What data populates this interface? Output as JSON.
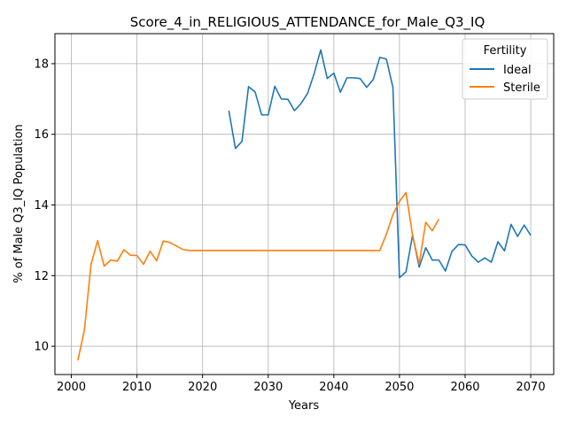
{
  "chart_data": {
    "type": "line",
    "title": "Score_4_in_RELIGIOUS_ATTENDANCE_for_Male_Q3_IQ",
    "xlabel": "Years",
    "ylabel": "% of Male Q3_IQ Population",
    "xlim": [
      1997.5,
      2073.5
    ],
    "ylim": [
      9.2,
      18.85
    ],
    "xticks": [
      2000,
      2010,
      2020,
      2030,
      2040,
      2050,
      2060,
      2070
    ],
    "yticks": [
      10,
      12,
      14,
      16,
      18
    ],
    "grid": true,
    "legend": {
      "title": "Fertility",
      "placement": "top-right"
    },
    "series": [
      {
        "name": "Ideal",
        "color": "#1f77b4",
        "x": [
          2024,
          2025,
          2026,
          2027,
          2028,
          2029,
          2030,
          2031,
          2032,
          2033,
          2034,
          2035,
          2036,
          2037,
          2038,
          2039,
          2040,
          2041,
          2042,
          2043,
          2044,
          2045,
          2046,
          2047,
          2048,
          2049,
          2050,
          2051,
          2052,
          2053,
          2054,
          2055,
          2056,
          2057,
          2058,
          2059,
          2060,
          2061,
          2062,
          2063,
          2064,
          2065,
          2066,
          2067,
          2068,
          2069,
          2070
        ],
        "y": [
          16.67,
          15.6,
          15.8,
          17.35,
          17.2,
          16.55,
          16.55,
          17.36,
          17.0,
          16.99,
          16.67,
          16.87,
          17.16,
          17.72,
          18.39,
          17.58,
          17.73,
          17.19,
          17.6,
          17.6,
          17.58,
          17.33,
          17.55,
          18.18,
          18.13,
          17.33,
          11.94,
          12.11,
          13.15,
          12.24,
          12.79,
          12.44,
          12.44,
          12.13,
          12.69,
          12.88,
          12.87,
          12.56,
          12.38,
          12.5,
          12.38,
          12.96,
          12.7,
          13.45,
          13.11,
          13.43,
          13.14
        ]
      },
      {
        "name": "Sterile",
        "color": "#ff7f0e",
        "x": [
          2001,
          2002,
          2003,
          2004,
          2005,
          2006,
          2007,
          2008,
          2009,
          2010,
          2011,
          2012,
          2013,
          2014,
          2015,
          2016,
          2017,
          2018,
          2019,
          2020,
          2021,
          2022,
          2023,
          2024,
          2025,
          2026,
          2027,
          2028,
          2029,
          2030,
          2031,
          2032,
          2033,
          2034,
          2035,
          2036,
          2037,
          2038,
          2039,
          2040,
          2041,
          2042,
          2043,
          2044,
          2045,
          2046,
          2047,
          2048,
          2049,
          2050,
          2051,
          2052,
          2053,
          2054,
          2055,
          2056
        ],
        "y": [
          9.6,
          10.47,
          12.32,
          12.99,
          12.27,
          12.44,
          12.41,
          12.73,
          12.58,
          12.57,
          12.32,
          12.69,
          12.42,
          12.98,
          12.94,
          12.84,
          12.74,
          12.71,
          12.71,
          12.71,
          12.71,
          12.71,
          12.71,
          12.71,
          12.71,
          12.71,
          12.71,
          12.71,
          12.71,
          12.71,
          12.71,
          12.71,
          12.71,
          12.71,
          12.71,
          12.71,
          12.71,
          12.71,
          12.71,
          12.71,
          12.71,
          12.71,
          12.71,
          12.71,
          12.71,
          12.71,
          12.71,
          13.17,
          13.73,
          14.1,
          14.35,
          13.13,
          12.33,
          13.51,
          13.27,
          13.6
        ]
      }
    ]
  }
}
